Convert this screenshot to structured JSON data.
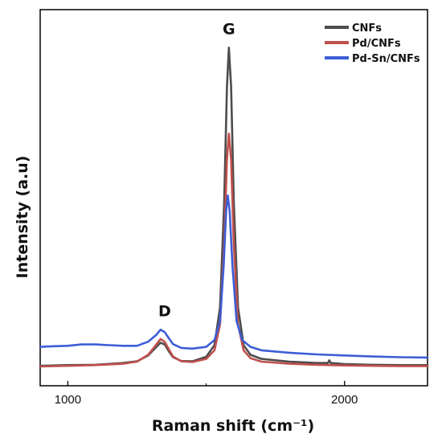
{
  "chart_data": {
    "type": "line",
    "xlabel": "Raman shift (cm⁻¹)",
    "ylabel": "Intensity (a.u)",
    "xlim": [
      900,
      2300
    ],
    "ylim": [
      0,
      1
    ],
    "xticks": [
      1000,
      2000
    ],
    "yticks_shown": false,
    "grid": false,
    "legend_position": "top-right",
    "annotations": [
      {
        "text": "D",
        "x": 1350,
        "y": 0.16
      },
      {
        "text": "G",
        "x": 1582,
        "y": 0.98
      }
    ],
    "series": [
      {
        "name": "CNFs",
        "color": "#4d4d4d",
        "x": [
          900,
          1000,
          1100,
          1200,
          1250,
          1290,
          1320,
          1335,
          1350,
          1365,
          1380,
          1410,
          1450,
          1500,
          1530,
          1550,
          1565,
          1575,
          1582,
          1590,
          1600,
          1615,
          1635,
          1660,
          1700,
          1800,
          1900,
          1940,
          1945,
          1950,
          2000,
          2100,
          2200,
          2300
        ],
        "y": [
          0.03,
          0.032,
          0.033,
          0.038,
          0.043,
          0.06,
          0.085,
          0.097,
          0.092,
          0.072,
          0.055,
          0.044,
          0.043,
          0.056,
          0.09,
          0.2,
          0.5,
          0.84,
          0.955,
          0.84,
          0.5,
          0.2,
          0.09,
          0.062,
          0.05,
          0.042,
          0.038,
          0.038,
          0.046,
          0.038,
          0.035,
          0.033,
          0.032,
          0.032
        ]
      },
      {
        "name": "Pd/CNFs",
        "color": "#c0504d",
        "x": [
          900,
          1000,
          1100,
          1200,
          1250,
          1290,
          1320,
          1335,
          1350,
          1365,
          1380,
          1410,
          1450,
          1500,
          1530,
          1550,
          1565,
          1575,
          1582,
          1590,
          1600,
          1615,
          1635,
          1660,
          1700,
          1800,
          1900,
          2000,
          2100,
          2200,
          2300
        ],
        "y": [
          0.028,
          0.03,
          0.032,
          0.036,
          0.042,
          0.062,
          0.092,
          0.108,
          0.1,
          0.078,
          0.057,
          0.043,
          0.041,
          0.05,
          0.075,
          0.15,
          0.38,
          0.63,
          0.705,
          0.63,
          0.38,
          0.15,
          0.075,
          0.052,
          0.042,
          0.036,
          0.033,
          0.031,
          0.03,
          0.029,
          0.029
        ]
      },
      {
        "name": "Pd-Sn/CNFs",
        "color": "#3c5ed6",
        "x": [
          900,
          950,
          1000,
          1050,
          1100,
          1150,
          1200,
          1250,
          1290,
          1320,
          1335,
          1350,
          1365,
          1380,
          1410,
          1450,
          1500,
          1530,
          1550,
          1563,
          1572,
          1578,
          1585,
          1595,
          1610,
          1630,
          1660,
          1700,
          1800,
          1900,
          2000,
          2100,
          2200,
          2300
        ],
        "y": [
          0.085,
          0.087,
          0.088,
          0.092,
          0.092,
          0.09,
          0.088,
          0.088,
          0.1,
          0.12,
          0.135,
          0.128,
          0.11,
          0.093,
          0.082,
          0.08,
          0.085,
          0.105,
          0.16,
          0.32,
          0.48,
          0.525,
          0.48,
          0.32,
          0.16,
          0.105,
          0.085,
          0.075,
          0.068,
          0.063,
          0.06,
          0.057,
          0.055,
          0.054
        ]
      }
    ]
  }
}
